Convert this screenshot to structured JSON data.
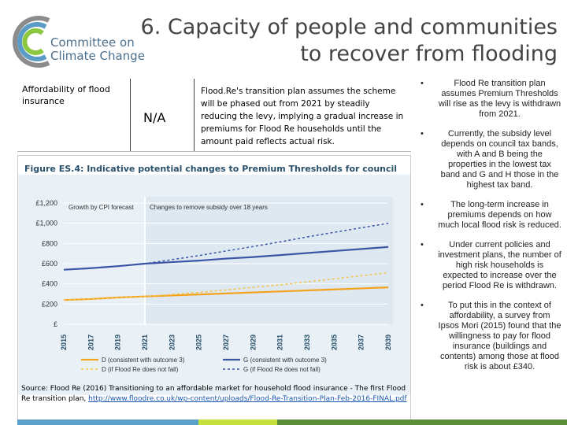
{
  "logo": {
    "line1": "Committee on",
    "line2": "Climate Change"
  },
  "title": {
    "line1": "6. Capacity of people and communities",
    "line2": "to recover from flooding"
  },
  "table": {
    "indicator": "Affordability of flood insurance",
    "score": "N/A",
    "description": "Flood.Re's transition plan assumes the scheme will be phased out from 2021 by steadily reducing the levy, implying a gradual increase in premiums for Flood Re households until the amount paid reflects actual risk."
  },
  "figure": {
    "title": "Figure ES.4: Indicative potential changes to Premium Thresholds for council tax bands D and G",
    "annotation_left": "Growth by CPI forecast",
    "annotation_right": "Changes to remove subsidy over 18 years",
    "legend": [
      {
        "label": "D (consistent with outcome 3)",
        "color": "#f4a21e",
        "dash": false
      },
      {
        "label": "G (consistent with outcome 3)",
        "color": "#3b55a5",
        "dash": false
      },
      {
        "label": "D (if Flood Re does not fall)",
        "color": "#f5c24a",
        "dash": true
      },
      {
        "label": "G (if Flood Re does not fall)",
        "color": "#3b55a5",
        "dash": true
      }
    ]
  },
  "chart_data": {
    "type": "line",
    "ylim": [
      0,
      1200
    ],
    "yticks": [
      "£",
      "£200",
      "£400",
      "£600",
      "£800",
      "£1,000",
      "£1,200"
    ],
    "ytick_values": [
      0,
      200,
      400,
      600,
      800,
      1000,
      1200
    ],
    "x": [
      2015,
      2017,
      2019,
      2021,
      2023,
      2025,
      2027,
      2029,
      2031,
      2033,
      2035,
      2037,
      2039
    ],
    "xlabels": [
      "2015",
      "2017",
      "2019",
      "2021",
      "2023",
      "2025",
      "2027",
      "2029",
      "2031",
      "2033",
      "2035",
      "2037",
      "2039"
    ],
    "series": [
      {
        "name": "D (consistent with outcome 3)",
        "values": [
          240,
          250,
          265,
          275,
          285,
          295,
          305,
          315,
          325,
          335,
          345,
          355,
          365
        ]
      },
      {
        "name": "G (consistent with outcome 3)",
        "values": [
          540,
          555,
          575,
          600,
          615,
          630,
          650,
          665,
          685,
          705,
          725,
          745,
          765
        ]
      },
      {
        "name": "D (if Flood Re does not fall)",
        "values": [
          240,
          250,
          265,
          275,
          295,
          315,
          340,
          365,
          390,
          420,
          450,
          480,
          510
        ]
      },
      {
        "name": "G (if Flood Re does not fall)",
        "values": [
          540,
          555,
          575,
          600,
          640,
          680,
          725,
          770,
          815,
          865,
          910,
          955,
          1000
        ]
      }
    ]
  },
  "source": {
    "text": "Source: Flood Re (2016) Transitioning to an affordable market for household flood insurance - The first Flood Re transition plan, ",
    "link": "http://www.floodre.co.uk/wp-content/uploads/Flood-Re-Transition-Plan-Feb-2016-FINAL.pdf"
  },
  "bullets": [
    "Flood Re transition plan assumes Premium Thresholds will rise as the levy is withdrawn from 2021.",
    "Currently, the subsidy level depends on council tax bands, with A and B being the properties in the lowest tax band and G and H those in the highest tax band.",
    "The long-term increase in premiums depends on how much local flood risk is reduced.",
    "Under current policies and investment plans, the number of high risk households is expected to increase over the period Flood Re is withdrawn.",
    "To put this in the context of affordability, a survey from Ipsos Mori (2015) found that the willingness to pay for flood insurance (buildings and contents) among those at flood risk is about £340."
  ]
}
